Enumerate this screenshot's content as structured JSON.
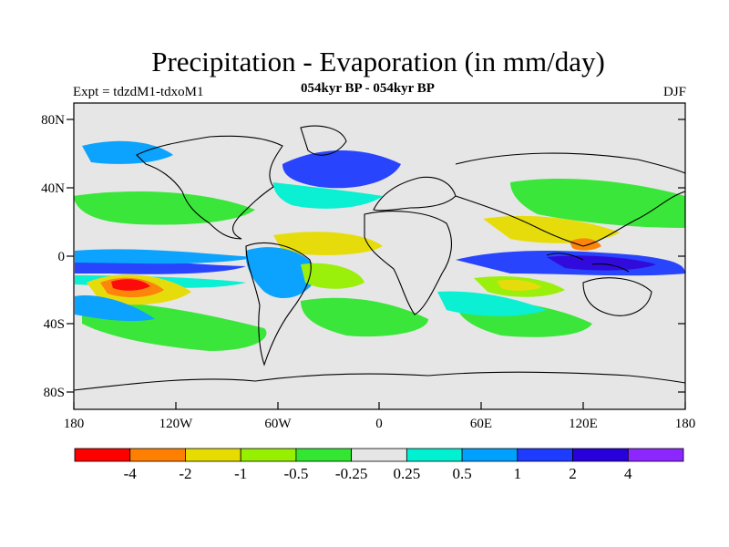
{
  "title": "Precipitation - Evaporation (in mm/day)",
  "subtitle": "054kyr BP - 054kyr BP",
  "experiment": "Expt = tdzdM1-tdxoM1",
  "season": "DJF",
  "map": {
    "lat_ticks": [
      "80N",
      "40N",
      "0",
      "40S",
      "80S"
    ],
    "lon_ticks": [
      "180",
      "120W",
      "60W",
      "0",
      "60E",
      "120E",
      "180"
    ],
    "ocean_color": "#e6e6e6",
    "coastline_color": "#000000"
  },
  "colorbar": {
    "colors": [
      "#ff0000",
      "#ff8000",
      "#e6dc00",
      "#96f000",
      "#32e632",
      "#e6e6e6",
      "#00f0d2",
      "#00a0ff",
      "#1e3cff",
      "#2800dc",
      "#8c28ff"
    ],
    "labels": [
      "-4",
      "-2",
      "-1",
      "-0.5",
      "-0.25",
      "0.25",
      "0.5",
      "1",
      "2",
      "4"
    ]
  }
}
